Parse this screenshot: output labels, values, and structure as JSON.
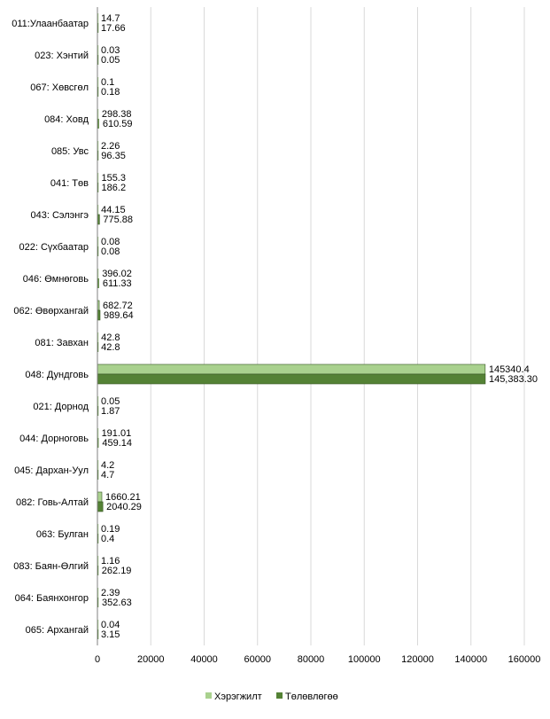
{
  "chart_data": {
    "type": "bar",
    "orientation": "horizontal",
    "categories": [
      "011:Улаанбаатар",
      "023: Хэнтий",
      "067: Хөвсгөл",
      "084: Ховд",
      "085: Увс",
      "041: Төв",
      "043: Сэлэнгэ",
      "022: Сүхбаатар",
      "046: Өмнөговь",
      "062: Өвөрхангай",
      "081: Завхан",
      "048: Дундговь",
      "021: Дорнод",
      "044: Дорноговь",
      "045: Дархан-Уул",
      "082: Говь-Алтай",
      "063: Булган",
      "083: Баян-Өлгий",
      "064: Баянхонгор",
      "065: Архангай"
    ],
    "series": [
      {
        "name": "Хэрэгжилт",
        "color": "#a9d18e",
        "values": [
          14.7,
          0.03,
          0.1,
          298.38,
          2.26,
          155.3,
          44.15,
          0.08,
          396.02,
          682.72,
          42.8,
          145340.4,
          0.05,
          191.01,
          4.2,
          1660.21,
          0.19,
          1.16,
          2.39,
          0.04
        ],
        "labels": [
          "14.7",
          "0.03",
          "0.1",
          "298.38",
          "2.26",
          "155.3",
          "44.15",
          "0.08",
          "396.02",
          "682.72",
          "42.8",
          "145340.4",
          "0.05",
          "191.01",
          "4.2",
          "1660.21",
          "0.19",
          "1.16",
          "2.39",
          "0.04"
        ]
      },
      {
        "name": "Төлөвлөгөө",
        "color": "#548235",
        "values": [
          17.66,
          0.05,
          0.18,
          610.59,
          96.35,
          186.2,
          775.88,
          0.08,
          611.33,
          989.64,
          42.8,
          145383.3,
          1.87,
          459.14,
          4.7,
          2040.29,
          0.4,
          262.19,
          352.63,
          3.15
        ],
        "labels": [
          "17.66",
          "0.05",
          "0.18",
          "610.59",
          "96.35",
          "186.2",
          "775.88",
          "0.08",
          "611.33",
          "989.64",
          "42.8",
          "145,383.30",
          "1.87",
          "459.14",
          "4.7",
          "2040.29",
          "0.4",
          "262.19",
          "352.63",
          "3.15"
        ]
      }
    ],
    "xlim": [
      0,
      160000
    ],
    "x_ticks": [
      0,
      20000,
      40000,
      60000,
      80000,
      100000,
      120000,
      140000,
      160000
    ],
    "x_tick_labels": [
      "0",
      "20000",
      "40000",
      "60000",
      "80000",
      "100000",
      "120000",
      "140000",
      "160000"
    ],
    "grid": "vertical",
    "legend_position": "bottom",
    "title": "",
    "xlabel": "",
    "ylabel": "",
    "axis_color": "#808080",
    "grid_color": "#d9d9d9",
    "bar_border_color": "#375623"
  }
}
